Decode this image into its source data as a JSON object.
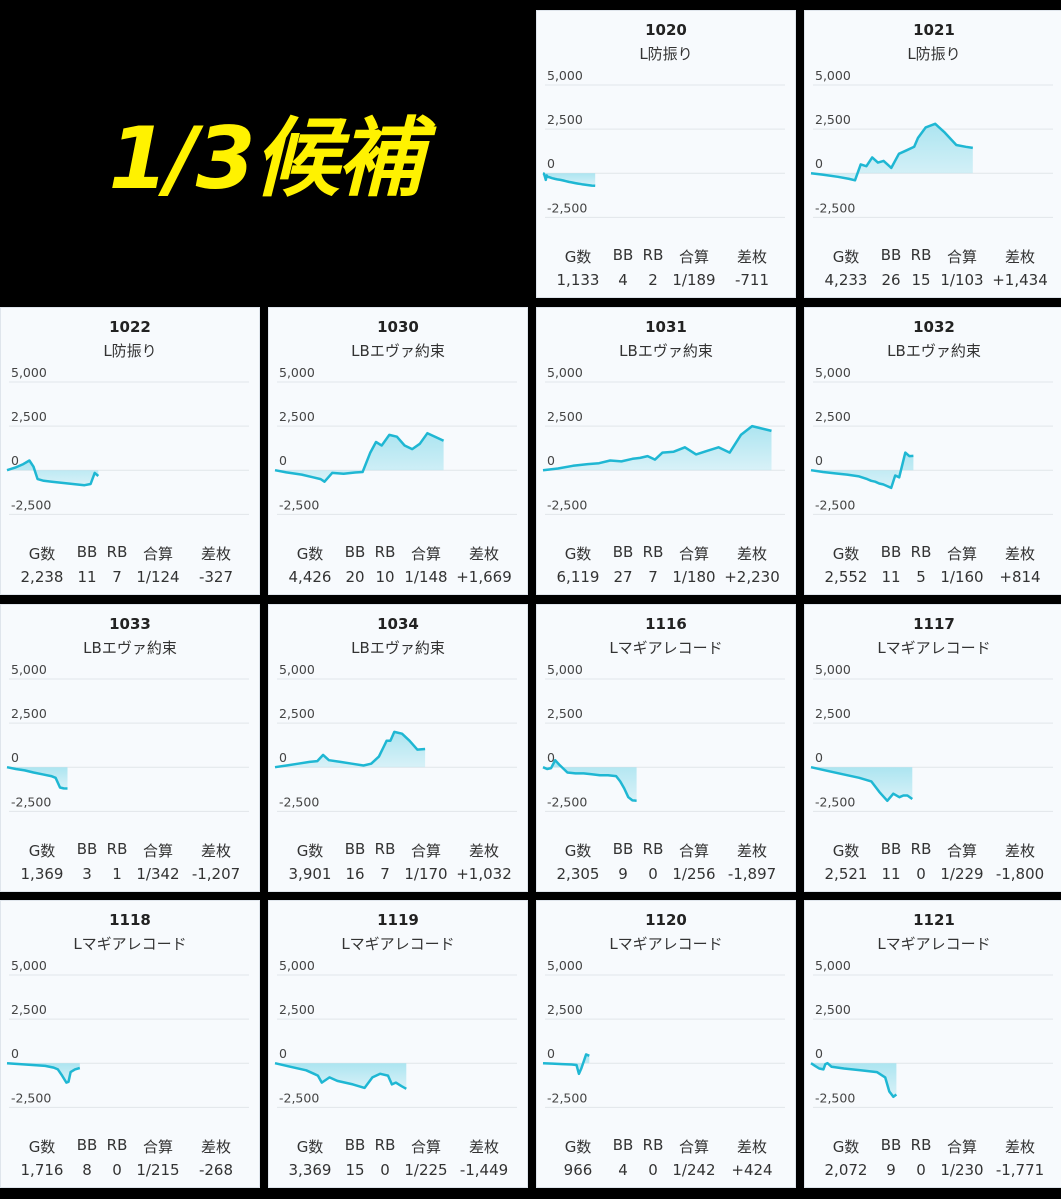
{
  "banner": {
    "text": "1/3候補"
  },
  "colors": {
    "line": "#1fb7d3",
    "fill": "#9fe1ee",
    "grid": "#e1e6ea",
    "card_bg": "#f7fafd",
    "banner_text": "#fff200"
  },
  "stat_headers": {
    "games": "G数",
    "bb": "BB",
    "rb": "RB",
    "combined": "合算",
    "diff": "差枚"
  },
  "chart_data": [
    {
      "type": "area",
      "machine_no": "1020",
      "model": "L防振り",
      "yticks": [
        "5,000",
        "2,500",
        "0",
        "-2,500"
      ],
      "ylim": [
        -3500,
        5000
      ],
      "x": [
        0,
        20,
        40,
        60,
        80,
        100,
        130,
        160,
        200,
        260,
        310,
        380,
        440,
        500,
        560,
        620,
        700,
        760,
        840,
        920,
        1000,
        1060,
        1133
      ],
      "y": [
        0,
        -20,
        -180,
        -380,
        -120,
        -200,
        -220,
        -250,
        -280,
        -320,
        -350,
        -380,
        -410,
        -450,
        -490,
        -520,
        -560,
        -590,
        -620,
        -650,
        -680,
        -700,
        -711
      ],
      "stats": {
        "games": "1,133",
        "bb": "4",
        "rb": "2",
        "combined": "1/189",
        "diff": "-711"
      }
    },
    {
      "type": "area",
      "machine_no": "1021",
      "model": "L防振り",
      "yticks": [
        "5,000",
        "2,500",
        "0",
        "-2,500"
      ],
      "ylim": [
        -3500,
        5000
      ],
      "x": [
        0,
        300,
        700,
        1000,
        1150,
        1300,
        1450,
        1600,
        1750,
        1900,
        2100,
        2300,
        2500,
        2700,
        2800,
        3000,
        3250,
        3500,
        3800,
        4050,
        4233
      ],
      "y": [
        0,
        -80,
        -200,
        -320,
        -400,
        500,
        400,
        900,
        600,
        700,
        300,
        1100,
        1300,
        1500,
        2000,
        2600,
        2800,
        2300,
        1600,
        1500,
        1434
      ],
      "stats": {
        "games": "4,233",
        "bb": "26",
        "rb": "15",
        "combined": "1/103",
        "diff": "+1,434"
      }
    },
    {
      "type": "area",
      "machine_no": "1022",
      "model": "L防振り",
      "yticks": [
        "5,000",
        "2,500",
        "0",
        "-2,500"
      ],
      "ylim": [
        -3500,
        5000
      ],
      "x": [
        0,
        200,
        400,
        550,
        650,
        750,
        900,
        1100,
        1300,
        1500,
        1700,
        1900,
        2050,
        2150,
        2238
      ],
      "y": [
        0,
        150,
        350,
        550,
        200,
        -500,
        -600,
        -650,
        -700,
        -750,
        -800,
        -850,
        -780,
        -150,
        -327
      ],
      "stats": {
        "games": "2,238",
        "bb": "11",
        "rb": "7",
        "combined": "1/124",
        "diff": "-327"
      }
    },
    {
      "type": "area",
      "machine_no": "1030",
      "model": "LBエヴァ約束",
      "yticks": [
        "5,000",
        "2,500",
        "0",
        "-2,500"
      ],
      "ylim": [
        -3500,
        5000
      ],
      "x": [
        0,
        300,
        700,
        1000,
        1200,
        1300,
        1500,
        1800,
        2100,
        2300,
        2500,
        2650,
        2800,
        3000,
        3200,
        3400,
        3600,
        3800,
        4000,
        4200,
        4426
      ],
      "y": [
        0,
        -120,
        -250,
        -400,
        -500,
        -650,
        -150,
        -200,
        -130,
        -100,
        1000,
        1600,
        1400,
        2000,
        1900,
        1400,
        1200,
        1500,
        2100,
        1900,
        1669
      ],
      "stats": {
        "games": "4,426",
        "bb": "20",
        "rb": "10",
        "combined": "1/148",
        "diff": "+1,669"
      }
    },
    {
      "type": "area",
      "machine_no": "1031",
      "model": "LBエヴァ約束",
      "yticks": [
        "5,000",
        "2,500",
        "0",
        "-2,500"
      ],
      "ylim": [
        -3500,
        5000
      ],
      "x": [
        0,
        400,
        800,
        1200,
        1500,
        1800,
        2100,
        2400,
        2600,
        2800,
        3000,
        3200,
        3500,
        3800,
        4100,
        4400,
        4700,
        5000,
        5300,
        5600,
        6119
      ],
      "y": [
        0,
        100,
        250,
        350,
        400,
        550,
        500,
        650,
        700,
        800,
        600,
        1000,
        1050,
        1300,
        900,
        1100,
        1300,
        1000,
        2000,
        2500,
        2230
      ],
      "stats": {
        "games": "6,119",
        "bb": "27",
        "rb": "7",
        "combined": "1/180",
        "diff": "+2,230"
      }
    },
    {
      "type": "area",
      "machine_no": "1032",
      "model": "LBエヴァ約束",
      "yticks": [
        "5,000",
        "2,500",
        "0",
        "-2,500"
      ],
      "ylim": [
        -3500,
        5000
      ],
      "x": [
        0,
        300,
        600,
        900,
        1200,
        1400,
        1500,
        1600,
        1700,
        1800,
        1900,
        2000,
        2100,
        2200,
        2350,
        2450,
        2552
      ],
      "y": [
        0,
        -100,
        -180,
        -250,
        -350,
        -500,
        -600,
        -650,
        -750,
        -800,
        -900,
        -1000,
        -300,
        -400,
        1000,
        800,
        814
      ],
      "stats": {
        "games": "2,552",
        "bb": "11",
        "rb": "5",
        "combined": "1/160",
        "diff": "+814"
      }
    },
    {
      "type": "area",
      "machine_no": "1033",
      "model": "LBエヴァ約束",
      "yticks": [
        "5,000",
        "2,500",
        "0",
        "-2,500"
      ],
      "ylim": [
        -3500,
        5000
      ],
      "x": [
        0,
        200,
        400,
        600,
        800,
        1000,
        1100,
        1200,
        1280,
        1369
      ],
      "y": [
        0,
        -100,
        -180,
        -300,
        -400,
        -500,
        -600,
        -1150,
        -1200,
        -1207
      ],
      "stats": {
        "games": "1,369",
        "bb": "3",
        "rb": "1",
        "combined": "1/342",
        "diff": "-1,207"
      }
    },
    {
      "type": "area",
      "machine_no": "1034",
      "model": "LBエヴァ約束",
      "yticks": [
        "5,000",
        "2,500",
        "0",
        "-2,500"
      ],
      "ylim": [
        -3500,
        5000
      ],
      "x": [
        0,
        300,
        600,
        900,
        1100,
        1250,
        1400,
        1700,
        2000,
        2300,
        2500,
        2700,
        2900,
        3000,
        3100,
        3300,
        3500,
        3700,
        3901
      ],
      "y": [
        0,
        100,
        200,
        300,
        350,
        700,
        400,
        300,
        200,
        100,
        200,
        600,
        1500,
        1500,
        2000,
        1900,
        1500,
        1000,
        1032
      ],
      "stats": {
        "games": "3,901",
        "bb": "16",
        "rb": "7",
        "combined": "1/170",
        "diff": "+1,032"
      }
    },
    {
      "type": "area",
      "machine_no": "1116",
      "model": "Lマギアレコード",
      "yticks": [
        "5,000",
        "2,500",
        "0",
        "-2,500"
      ],
      "ylim": [
        -3500,
        5000
      ],
      "x": [
        0,
        100,
        200,
        300,
        400,
        600,
        800,
        1000,
        1200,
        1400,
        1600,
        1800,
        1900,
        2000,
        2100,
        2200,
        2305
      ],
      "y": [
        0,
        -100,
        -50,
        400,
        150,
        -300,
        -350,
        -350,
        -400,
        -450,
        -450,
        -500,
        -800,
        -1200,
        -1700,
        -1880,
        -1897
      ],
      "stats": {
        "games": "2,305",
        "bb": "9",
        "rb": "0",
        "combined": "1/256",
        "diff": "-1,897"
      }
    },
    {
      "type": "area",
      "machine_no": "1117",
      "model": "Lマギアレコード",
      "yticks": [
        "5,000",
        "2,500",
        "0",
        "-2,500"
      ],
      "ylim": [
        -3500,
        5000
      ],
      "x": [
        0,
        400,
        800,
        1200,
        1500,
        1700,
        1900,
        2050,
        2200,
        2300,
        2400,
        2521
      ],
      "y": [
        0,
        -200,
        -400,
        -600,
        -800,
        -1400,
        -1900,
        -1500,
        -1700,
        -1600,
        -1600,
        -1800
      ],
      "stats": {
        "games": "2,521",
        "bb": "11",
        "rb": "0",
        "combined": "1/229",
        "diff": "-1,800"
      }
    },
    {
      "type": "area",
      "machine_no": "1118",
      "model": "Lマギアレコード",
      "yticks": [
        "5,000",
        "2,500",
        "0",
        "-2,500"
      ],
      "ylim": [
        -3500,
        5000
      ],
      "x": [
        0,
        300,
        600,
        900,
        1100,
        1200,
        1300,
        1400,
        1450,
        1500,
        1600,
        1716
      ],
      "y": [
        0,
        -50,
        -100,
        -150,
        -250,
        -350,
        -700,
        -1100,
        -1050,
        -500,
        -350,
        -268
      ],
      "stats": {
        "games": "1,716",
        "bb": "8",
        "rb": "0",
        "combined": "1/215",
        "diff": "-268"
      }
    },
    {
      "type": "area",
      "machine_no": "1119",
      "model": "Lマギアレコード",
      "yticks": [
        "5,000",
        "2,500",
        "0",
        "-2,500"
      ],
      "ylim": [
        -3500,
        5000
      ],
      "x": [
        0,
        400,
        800,
        1000,
        1100,
        1200,
        1400,
        1600,
        2000,
        2300,
        2500,
        2700,
        2900,
        3000,
        3100,
        3250,
        3369
      ],
      "y": [
        0,
        -200,
        -400,
        -600,
        -700,
        -1100,
        -800,
        -1000,
        -1200,
        -1400,
        -800,
        -600,
        -700,
        -1200,
        -1100,
        -1300,
        -1449
      ],
      "stats": {
        "games": "3,369",
        "bb": "15",
        "rb": "0",
        "combined": "1/225",
        "diff": "-1,449"
      }
    },
    {
      "type": "area",
      "machine_no": "1120",
      "model": "Lマギアレコード",
      "yticks": [
        "5,000",
        "2,500",
        "0",
        "-2,500"
      ],
      "ylim": [
        -3500,
        5000
      ],
      "x": [
        0,
        200,
        400,
        600,
        700,
        750,
        800,
        850,
        900,
        966
      ],
      "y": [
        0,
        -20,
        -50,
        -70,
        -100,
        -600,
        -300,
        100,
        500,
        424
      ],
      "stats": {
        "games": "966",
        "bb": "4",
        "rb": "0",
        "combined": "1/242",
        "diff": "+424"
      }
    },
    {
      "type": "area",
      "machine_no": "1121",
      "model": "Lマギアレコード",
      "yticks": [
        "5,000",
        "2,500",
        "0",
        "-2,500"
      ],
      "ylim": [
        -3500,
        5000
      ],
      "x": [
        0,
        100,
        200,
        300,
        350,
        400,
        500,
        800,
        1200,
        1600,
        1800,
        1900,
        2000,
        2072
      ],
      "y": [
        0,
        -150,
        -300,
        -350,
        -50,
        0,
        -200,
        -300,
        -400,
        -500,
        -800,
        -1600,
        -1900,
        -1771
      ],
      "stats": {
        "games": "2,072",
        "bb": "9",
        "rb": "0",
        "combined": "1/230",
        "diff": "-1,771"
      }
    }
  ]
}
